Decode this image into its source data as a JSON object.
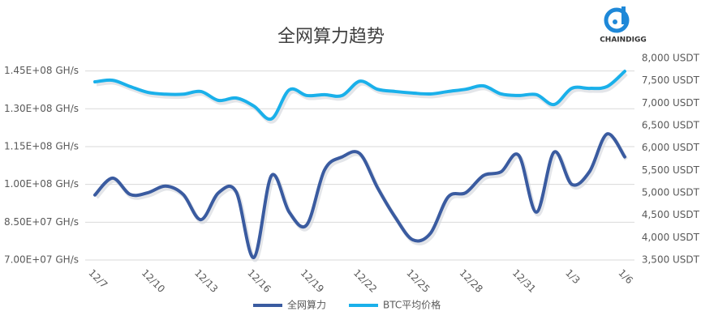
{
  "logo": {
    "text": "CHAINDIGG"
  },
  "chart_data": {
    "type": "line",
    "title": "全网算力趋势",
    "categories": [
      "12/7",
      null,
      null,
      "12/10",
      null,
      null,
      "12/13",
      null,
      null,
      "12/16",
      null,
      null,
      "12/19",
      null,
      null,
      "12/22",
      null,
      null,
      "12/25",
      null,
      null,
      "12/28",
      null,
      null,
      "12/31",
      null,
      null,
      "1/3",
      null,
      null,
      "1/6"
    ],
    "series": [
      {
        "name": "全网算力",
        "color": "#3a5ba0",
        "values": [
          95800000,
          102500000,
          96000000,
          96700000,
          99300000,
          96000000,
          86000000,
          96700000,
          97000000,
          71000000,
          103500000,
          89000000,
          84000000,
          105700000,
          110900000,
          112200000,
          98700000,
          87000000,
          78000000,
          80600000,
          95000000,
          96700000,
          103500000,
          105000000,
          111500000,
          89000000,
          112800000,
          100000000,
          105000000,
          120000000,
          110900000
        ]
      },
      {
        "name": "BTC平均价格",
        "color": "#1ab0ea",
        "axis": "y2",
        "values": [
          7475,
          7510,
          7370,
          7240,
          7200,
          7200,
          7260,
          7060,
          7115,
          6935,
          6650,
          7295,
          7170,
          7190,
          7170,
          7490,
          7310,
          7260,
          7225,
          7205,
          7260,
          7310,
          7385,
          7205,
          7170,
          7190,
          6970,
          7330,
          7330,
          7370,
          7710
        ]
      }
    ],
    "ylim": [
      70000000,
      150000000
    ],
    "yticks": [
      {
        "value": 70000000,
        "label": "7.00E+07 GH/s"
      },
      {
        "value": 85000000,
        "label": "8.50E+07 GH/s"
      },
      {
        "value": 100000000,
        "label": "1.00E+08 GH/s"
      },
      {
        "value": 115000000,
        "label": "1.15E+08 GH/s"
      },
      {
        "value": 130000000,
        "label": "1.30E+08 GH/s"
      },
      {
        "value": 145000000,
        "label": "1.45E+08 GH/s"
      }
    ],
    "y2lim": [
      3500,
      8000
    ],
    "y2ticks": [
      {
        "value": 3500,
        "label": "3,500 USDT"
      },
      {
        "value": 4000,
        "label": "4,000 USDT"
      },
      {
        "value": 4500,
        "label": "4,500 USDT"
      },
      {
        "value": 5000,
        "label": "5,000 USDT"
      },
      {
        "value": 5500,
        "label": "5,500 USDT"
      },
      {
        "value": 6000,
        "label": "6,000 USDT"
      },
      {
        "value": 6500,
        "label": "6,500 USDT"
      },
      {
        "value": 7000,
        "label": "7,000 USDT"
      },
      {
        "value": 7500,
        "label": "7,500 USDT"
      },
      {
        "value": 8000,
        "label": "8,000 USDT"
      }
    ],
    "grid": true,
    "legend": "bottom"
  }
}
